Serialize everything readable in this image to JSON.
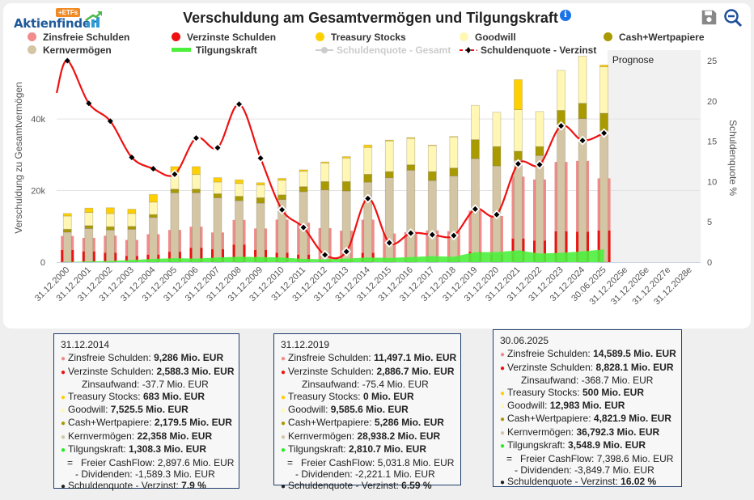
{
  "logo": {
    "text": "Aktienfinder",
    "badge": "+ETFs"
  },
  "title": "Verschuldung am Gesamtvermögen und Tilgungskraft",
  "icons": {
    "info": "info-icon",
    "save": "save-icon",
    "zoom_out": "zoom-out-icon"
  },
  "legend": [
    {
      "label": "Zinsfreie Schulden",
      "color": "#f28b8b",
      "type": "dot",
      "enabled": true
    },
    {
      "label": "Verzinste Schulden",
      "color": "#ee1111",
      "type": "dot",
      "enabled": true
    },
    {
      "label": "Treasury Stocks",
      "color": "#ffd000",
      "type": "dot",
      "enabled": true
    },
    {
      "label": "Goodwill",
      "color": "#fff7b3",
      "type": "dot",
      "enabled": true
    },
    {
      "label": "Cash+Wertpapiere",
      "color": "#a89a00",
      "type": "dot",
      "enabled": true
    },
    {
      "label": "Kernvermögen",
      "color": "#d4c6a4",
      "type": "dot",
      "enabled": true
    },
    {
      "label": "Tilgungskraft",
      "color": "#4cf03c",
      "type": "bar",
      "enabled": true
    },
    {
      "label": "Schuldenquote - Gesamt",
      "color": "#cccccc",
      "type": "line",
      "enabled": false
    },
    {
      "label": "Schuldenquote - Verzinst",
      "color": "#ee1111",
      "type": "dashline",
      "enabled": true
    }
  ],
  "chart_data": {
    "type": "bar",
    "title": "Verschuldung am Gesamtvermögen und Tilgungskraft",
    "xlabel": "",
    "ylabel": "Verschuldung zu Gesamtvermögen",
    "ylabel_right": "Schuldenquote %",
    "ylim": [
      0,
      55000
    ],
    "ylim_right": [
      0,
      27.5
    ],
    "yticks": [
      {
        "v": 0,
        "label": "0"
      },
      {
        "v": 20000,
        "label": "20k"
      },
      {
        "v": 40000,
        "label": "40k"
      }
    ],
    "yticks_right": [
      0,
      5,
      10,
      15,
      20,
      25
    ],
    "grid": true,
    "forecast_band_label": "Prognose",
    "forecast_start_index": 26,
    "categories": [
      "31.12.2000",
      "31.12.2001",
      "31.12.2002",
      "31.12.2003",
      "31.12.2004",
      "31.12.2005",
      "31.12.2006",
      "31.12.2007",
      "31.12.2008",
      "31.12.2009",
      "31.12.2010",
      "31.12.2011",
      "31.12.2012",
      "31.12.2013",
      "31.12.2014",
      "31.12.2015",
      "31.12.2016",
      "31.12.2017",
      "31.12.2018",
      "31.12.2019",
      "31.12.2020",
      "31.12.2021",
      "31.12.2022",
      "31.12.2023",
      "31.12.2024",
      "30.06.2025",
      "31.12.2025e",
      "31.12.2026e",
      "31.12.2027e",
      "31.12.2028e"
    ],
    "series": [
      {
        "name": "Zinsfreie Schulden",
        "color": "#f28b8b",
        "stack": "debt",
        "values": [
          3900,
          3800,
          4800,
          4500,
          5700,
          6100,
          5900,
          4700,
          6900,
          6000,
          9300,
          8900,
          9100,
          8300,
          9286,
          7700,
          8000,
          8500,
          8200,
          11497,
          10700,
          17300,
          17100,
          19400,
          19800,
          14590,
          null,
          null,
          null,
          null
        ]
      },
      {
        "name": "Verzinste Schulden",
        "color": "#ee1111",
        "stack": "debt",
        "values": [
          3400,
          3000,
          2600,
          1700,
          2100,
          2900,
          4000,
          3600,
          4900,
          3400,
          2600,
          2100,
          400,
          500,
          2588,
          300,
          400,
          350,
          450,
          2887,
          2200,
          6600,
          6000,
          8600,
          8500,
          8828,
          null,
          null,
          null,
          null
        ]
      },
      {
        "name": "Kernvermögen",
        "color": "#d4c6a4",
        "stack": "assets",
        "values": [
          8400,
          9400,
          9000,
          9200,
          12500,
          19400,
          19400,
          18000,
          17200,
          16500,
          17500,
          19700,
          20200,
          19900,
          22358,
          23600,
          25700,
          22800,
          24100,
          28938,
          26900,
          28500,
          29800,
          38300,
          40100,
          36792,
          null,
          null,
          null,
          null
        ]
      },
      {
        "name": "Cash+Wertpapiere",
        "color": "#a89a00",
        "stack": "assets",
        "values": [
          800,
          800,
          900,
          800,
          800,
          1000,
          1000,
          1100,
          1200,
          1500,
          1300,
          1400,
          2300,
          2600,
          2180,
          1700,
          1500,
          2500,
          2200,
          5286,
          5400,
          2500,
          2500,
          4100,
          4300,
          4822,
          null,
          null,
          null,
          null
        ]
      },
      {
        "name": "Goodwill",
        "color": "#fff7b3",
        "stack": "assets",
        "values": [
          3700,
          3700,
          3700,
          3600,
          3500,
          4200,
          4100,
          3300,
          3600,
          3600,
          4100,
          4300,
          5200,
          6600,
          7526,
          8600,
          7400,
          7300,
          8700,
          9586,
          9600,
          11600,
          9800,
          11200,
          13200,
          12983,
          null,
          null,
          null,
          null
        ]
      },
      {
        "name": "Treasury Stocks",
        "color": "#ffd000",
        "stack": "assets",
        "values": [
          700,
          1200,
          1600,
          1200,
          2100,
          2100,
          2200,
          1200,
          1000,
          600,
          500,
          400,
          300,
          400,
          683,
          200,
          200,
          100,
          100,
          0,
          0,
          8400,
          0,
          0,
          0,
          500,
          null,
          null,
          null,
          null
        ]
      },
      {
        "name": "Tilgungskraft",
        "color": "#4cf03c",
        "type": "area",
        "values": [
          0,
          200,
          300,
          600,
          900,
          1100,
          1000,
          1300,
          1500,
          1400,
          1300,
          900,
          800,
          1000,
          1308,
          1200,
          1400,
          1700,
          1500,
          2811,
          2800,
          3300,
          2400,
          2600,
          3000,
          3549,
          null,
          null,
          null,
          null
        ]
      },
      {
        "name": "Schuldenquote - Verzinst",
        "color": "#ee1111",
        "type": "line",
        "axis": "right",
        "values": [
          25.0,
          19.7,
          17.5,
          13.0,
          11.6,
          10.9,
          15.4,
          14.2,
          19.6,
          12.9,
          6.5,
          4.3,
          0.9,
          1.3,
          7.9,
          2.4,
          3.6,
          3.4,
          3.3,
          6.59,
          5.9,
          12.2,
          12.1,
          16.9,
          15.1,
          16.02,
          null,
          null,
          null,
          null
        ]
      }
    ]
  },
  "tooltips": [
    {
      "date": "31.12.2014",
      "rows": [
        {
          "dot": "#f28b8b",
          "label": "Zinsfreie Schulden: ",
          "value": "9,286 Mio. EUR"
        },
        {
          "dot": "#ee1111",
          "label": "Verzinste Schulden: ",
          "value": "2,588.3 Mio. EUR"
        },
        {
          "sub": "Zinsaufwand: -37.7 Mio. EUR"
        },
        {
          "dot": "#ffd000",
          "label": "Treasury Stocks: ",
          "value": "683 Mio. EUR"
        },
        {
          "dot": "#fff7b3",
          "label": "Goodwill: ",
          "value": "7,525.5 Mio. EUR"
        },
        {
          "dot": "#a89a00",
          "label": "Cash+Wertpapiere: ",
          "value": "2,179.5 Mio. EUR"
        },
        {
          "dot": "#d4c6a4",
          "label": "Kernvermögen: ",
          "value": "22,358 Mio. EUR"
        },
        {
          "dot": "#22ee22",
          "label": "Tilgungskraft: ",
          "value": "1,308.3 Mio. EUR"
        },
        {
          "eq": "=   Freier CashFlow: 2,897.6 Mio. EUR"
        },
        {
          "minus": "- Dividenden: -1,589.3 Mio. EUR"
        },
        {
          "dot": "#222222",
          "label": "Schuldenquote - Verzinst: ",
          "value": "7.9 %"
        }
      ]
    },
    {
      "date": "31.12.2019",
      "rows": [
        {
          "dot": "#f28b8b",
          "label": "Zinsfreie Schulden: ",
          "value": "11,497.1 Mio. EUR"
        },
        {
          "dot": "#ee1111",
          "label": "Verzinste Schulden: ",
          "value": "2,886.7 Mio. EUR"
        },
        {
          "sub": "Zinsaufwand: -75.4 Mio. EUR"
        },
        {
          "dot": "#ffd000",
          "label": "Treasury Stocks: ",
          "value": "0 Mio. EUR"
        },
        {
          "dot": "#fff7b3",
          "label": "Goodwill: ",
          "value": "9,585.6 Mio. EUR"
        },
        {
          "dot": "#a89a00",
          "label": "Cash+Wertpapiere: ",
          "value": "5,286 Mio. EUR"
        },
        {
          "dot": "#d4c6a4",
          "label": "Kernvermögen: ",
          "value": "28,938.2 Mio. EUR"
        },
        {
          "dot": "#22ee22",
          "label": "Tilgungskraft: ",
          "value": "2,810.7 Mio. EUR"
        },
        {
          "eq": "=   Freier CashFlow: 5,031.8 Mio. EUR"
        },
        {
          "minus": "- Dividenden: -2,221.1 Mio. EUR"
        },
        {
          "dot": "#222222",
          "label": "Schuldenquote - Verzinst: ",
          "value": "6.59 %"
        }
      ]
    },
    {
      "date": "30.06.2025",
      "rows": [
        {
          "dot": "#f28b8b",
          "label": "Zinsfreie Schulden: ",
          "value": "14,589.5 Mio. EUR"
        },
        {
          "dot": "#ee1111",
          "label": "Verzinste Schulden: ",
          "value": "8,828.1 Mio. EUR"
        },
        {
          "sub": "Zinsaufwand: -368.7 Mio. EUR"
        },
        {
          "dot": "#ffd000",
          "label": "Treasury Stocks: ",
          "value": "500 Mio. EUR"
        },
        {
          "dot": "#fff7b3",
          "label": "Goodwill: ",
          "value": "12,983 Mio. EUR"
        },
        {
          "dot": "#a89a00",
          "label": "Cash+Wertpapiere: ",
          "value": "4,821.9 Mio. EUR"
        },
        {
          "dot": "#d4c6a4",
          "label": "Kernvermögen: ",
          "value": "36,792.3 Mio. EUR"
        },
        {
          "dot": "#22ee22",
          "label": "Tilgungskraft: ",
          "value": "3,548.9 Mio. EUR"
        },
        {
          "eq": "=   Freier CashFlow: 7,398.6 Mio. EUR"
        },
        {
          "minus": "- Dividenden: -3,849.7 Mio. EUR"
        },
        {
          "dot": "#222222",
          "label": "Schuldenquote - Verzinst: ",
          "value": "16.02 %"
        }
      ]
    }
  ]
}
